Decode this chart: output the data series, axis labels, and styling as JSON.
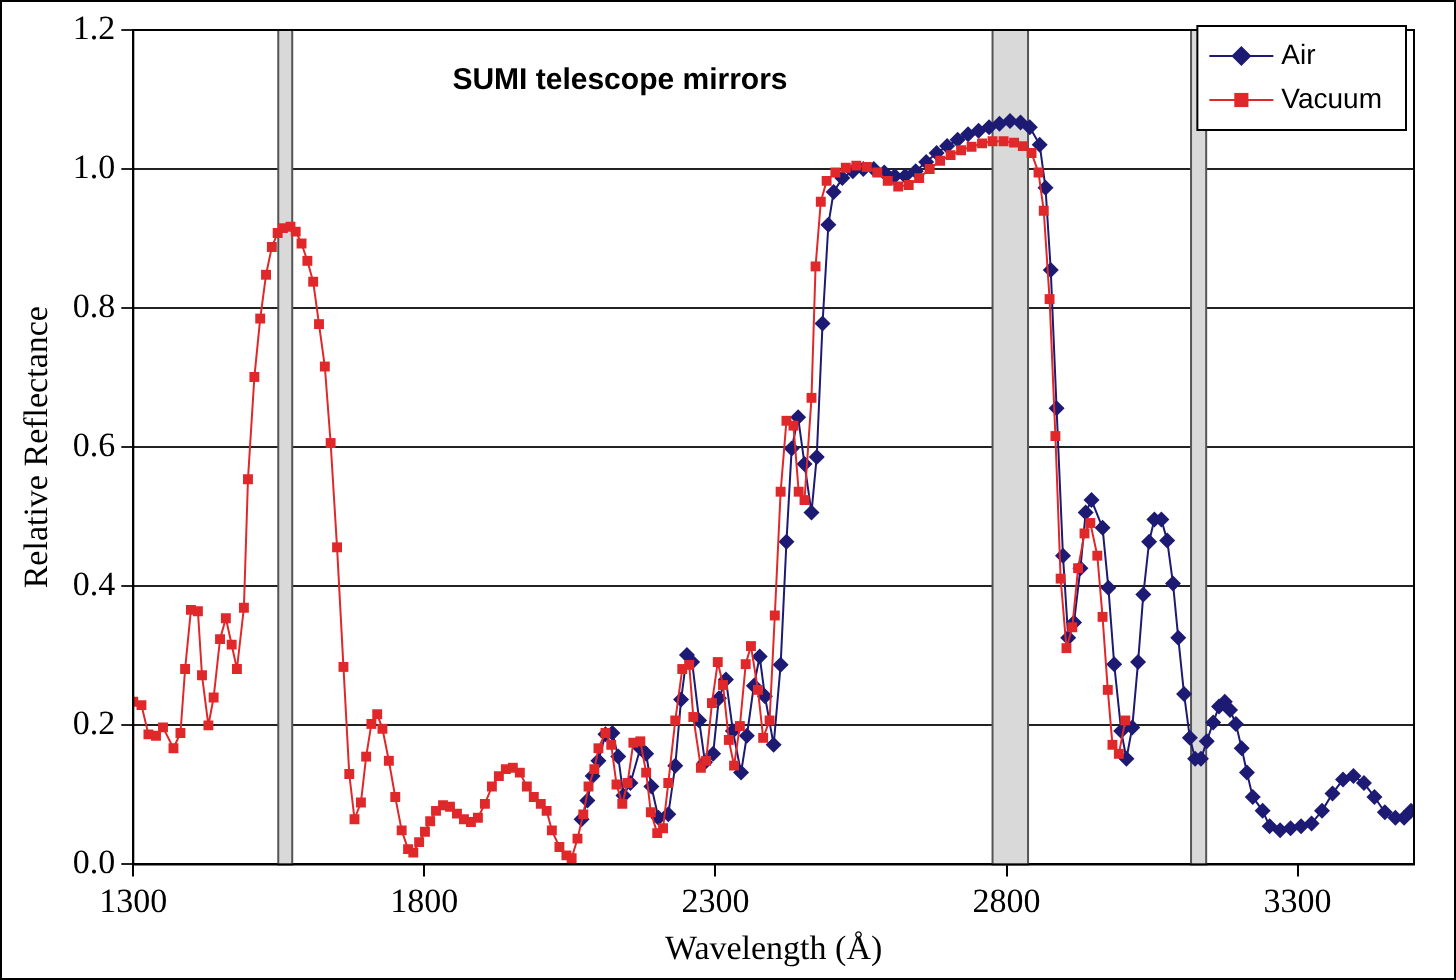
{
  "chart_data": {
    "type": "line",
    "title": "SUMI telescope mirrors",
    "xlabel": "Wavelength (Å)",
    "ylabel": "Relative Reflectance",
    "xlim": [
      1300,
      3500
    ],
    "xticks": [
      1300,
      1800,
      2300,
      2800,
      3300
    ],
    "ylim": [
      0,
      1.2
    ],
    "yticks": [
      {
        "value": 0,
        "label": "0.0"
      },
      {
        "value": 0.2,
        "label": "0.2"
      },
      {
        "value": 0.4,
        "label": "0.4"
      },
      {
        "value": 0.6,
        "label": "0.6"
      },
      {
        "value": 0.8,
        "label": "0.8"
      },
      {
        "value": 1.0,
        "label": "1.0"
      },
      {
        "value": 1.2,
        "label": "1.2"
      }
    ],
    "grid": "y",
    "legend": "top right",
    "bands": [
      {
        "axis": "x",
        "from": 1549,
        "to": 1573,
        "color": "#d9d9d9"
      },
      {
        "axis": "x",
        "from": 2776,
        "to": 2837,
        "color": "#d9d9d9"
      },
      {
        "axis": "x",
        "from": 3117,
        "to": 3143,
        "color": "#d9d9d9"
      }
    ],
    "series": [
      {
        "name": "Air",
        "color": "#1c1a72",
        "marker": "diamond",
        "x": [
          2070,
          2080,
          2089,
          2099,
          2111,
          2123,
          2133,
          2142,
          2154,
          2171,
          2181,
          2190,
          2202,
          2219,
          2231,
          2241,
          2251,
          2260,
          2272,
          2282,
          2296,
          2306,
          2318,
          2330,
          2344,
          2354,
          2366,
          2376,
          2385,
          2400,
          2412,
          2422,
          2431,
          2442,
          2453,
          2465,
          2474,
          2484,
          2494,
          2503,
          2518,
          2536,
          2554,
          2572,
          2590,
          2608,
          2626,
          2644,
          2662,
          2680,
          2698,
          2716,
          2734,
          2752,
          2770,
          2788,
          2806,
          2824,
          2840,
          2857,
          2867,
          2876,
          2886,
          2897,
          2906,
          2916,
          2927,
          2936,
          2946,
          2965,
          2975,
          2985,
          2997,
          3006,
          3016,
          3026,
          3035,
          3045,
          3054,
          3066,
          3076,
          3086,
          3095,
          3105,
          3115,
          3124,
          3134,
          3144,
          3155,
          3165,
          3175,
          3184,
          3194,
          3204,
          3213,
          3223,
          3240,
          3252,
          3270,
          3288,
          3306,
          3324,
          3342,
          3360,
          3378,
          3396,
          3414,
          3432,
          3450,
          3468,
          3483,
          3495
        ],
        "values": [
          0.065,
          0.092,
          0.127,
          0.149,
          0.187,
          0.189,
          0.155,
          0.099,
          0.117,
          0.167,
          0.159,
          0.112,
          0.067,
          0.072,
          0.142,
          0.237,
          0.301,
          0.291,
          0.207,
          0.147,
          0.159,
          0.239,
          0.266,
          0.192,
          0.132,
          0.185,
          0.257,
          0.299,
          0.242,
          0.172,
          0.287,
          0.464,
          0.598,
          0.643,
          0.576,
          0.506,
          0.586,
          0.778,
          0.92,
          0.967,
          0.987,
          0.997,
          1.0,
          1.0,
          0.995,
          0.99,
          0.99,
          0.997,
          1.01,
          1.023,
          1.033,
          1.042,
          1.05,
          1.055,
          1.06,
          1.065,
          1.069,
          1.067,
          1.06,
          1.035,
          0.973,
          0.855,
          0.656,
          0.444,
          0.326,
          0.348,
          0.426,
          0.506,
          0.524,
          0.484,
          0.398,
          0.288,
          0.192,
          0.152,
          0.197,
          0.291,
          0.388,
          0.464,
          0.496,
          0.496,
          0.466,
          0.404,
          0.326,
          0.245,
          0.182,
          0.152,
          0.152,
          0.177,
          0.204,
          0.227,
          0.234,
          0.222,
          0.202,
          0.167,
          0.132,
          0.097,
          0.077,
          0.055,
          0.049,
          0.052,
          0.055,
          0.059,
          0.077,
          0.102,
          0.122,
          0.127,
          0.117,
          0.097,
          0.075,
          0.067,
          0.067,
          0.077
        ]
      },
      {
        "name": "Vacuum",
        "color": "#e0282a",
        "marker": "square",
        "x": [
          1300,
          1314,
          1326,
          1339,
          1351,
          1369,
          1381,
          1389,
          1399,
          1411,
          1418,
          1429,
          1438,
          1449,
          1459,
          1469,
          1478,
          1490,
          1497,
          1508,
          1518,
          1528,
          1538,
          1548,
          1557,
          1570,
          1579,
          1589,
          1599,
          1609,
          1619,
          1629,
          1639,
          1650,
          1661,
          1671,
          1680,
          1691,
          1700,
          1709,
          1719,
          1728,
          1739,
          1750,
          1761,
          1772,
          1781,
          1791,
          1801,
          1810,
          1820,
          1832,
          1844,
          1856,
          1868,
          1880,
          1892,
          1904,
          1916,
          1928,
          1940,
          1952,
          1964,
          1976,
          1988,
          2000,
          2010,
          2019,
          2032,
          2044,
          2053,
          2063,
          2073,
          2082,
          2092,
          2099,
          2111,
          2121,
          2130,
          2140,
          2149,
          2159,
          2171,
          2181,
          2189,
          2200,
          2210,
          2219,
          2231,
          2243,
          2255,
          2262,
          2275,
          2284,
          2294,
          2304,
          2313,
          2323,
          2332,
          2342,
          2352,
          2361,
          2373,
          2382,
          2393,
          2402,
          2412,
          2422,
          2434,
          2443,
          2453,
          2465,
          2472,
          2481,
          2491,
          2506,
          2524,
          2542,
          2560,
          2578,
          2596,
          2614,
          2632,
          2650,
          2668,
          2686,
          2704,
          2722,
          2740,
          2758,
          2776,
          2795,
          2813,
          2828,
          2843,
          2855,
          2864,
          2874,
          2884,
          2893,
          2903,
          2913,
          2923,
          2934,
          2944,
          2956,
          2965,
          2974,
          2982,
          2993,
          3004
        ],
        "values": [
          0.234,
          0.229,
          0.187,
          0.185,
          0.197,
          0.167,
          0.189,
          0.281,
          0.366,
          0.364,
          0.272,
          0.2,
          0.24,
          0.324,
          0.354,
          0.316,
          0.281,
          0.369,
          0.554,
          0.701,
          0.785,
          0.848,
          0.888,
          0.908,
          0.915,
          0.917,
          0.91,
          0.893,
          0.868,
          0.838,
          0.777,
          0.716,
          0.606,
          0.456,
          0.284,
          0.13,
          0.065,
          0.089,
          0.155,
          0.202,
          0.216,
          0.195,
          0.149,
          0.097,
          0.049,
          0.022,
          0.017,
          0.032,
          0.047,
          0.062,
          0.077,
          0.085,
          0.083,
          0.073,
          0.065,
          0.061,
          0.067,
          0.087,
          0.112,
          0.127,
          0.137,
          0.139,
          0.132,
          0.112,
          0.097,
          0.087,
          0.077,
          0.049,
          0.025,
          0.013,
          0.009,
          0.037,
          0.072,
          0.112,
          0.137,
          0.167,
          0.189,
          0.172,
          0.115,
          0.087,
          0.117,
          0.175,
          0.177,
          0.132,
          0.075,
          0.045,
          0.052,
          0.117,
          0.207,
          0.281,
          0.287,
          0.212,
          0.139,
          0.149,
          0.232,
          0.291,
          0.258,
          0.179,
          0.142,
          0.199,
          0.288,
          0.314,
          0.251,
          0.182,
          0.207,
          0.358,
          0.536,
          0.638,
          0.631,
          0.536,
          0.524,
          0.671,
          0.86,
          0.953,
          0.983,
          0.995,
          1.002,
          1.005,
          1.003,
          0.995,
          0.983,
          0.975,
          0.977,
          0.987,
          1.0,
          1.012,
          1.02,
          1.027,
          1.032,
          1.037,
          1.04,
          1.04,
          1.038,
          1.033,
          1.023,
          0.995,
          0.94,
          0.813,
          0.616,
          0.411,
          0.311,
          0.341,
          0.426,
          0.476,
          0.491,
          0.444,
          0.356,
          0.251,
          0.172,
          0.159,
          0.207
        ]
      }
    ]
  }
}
